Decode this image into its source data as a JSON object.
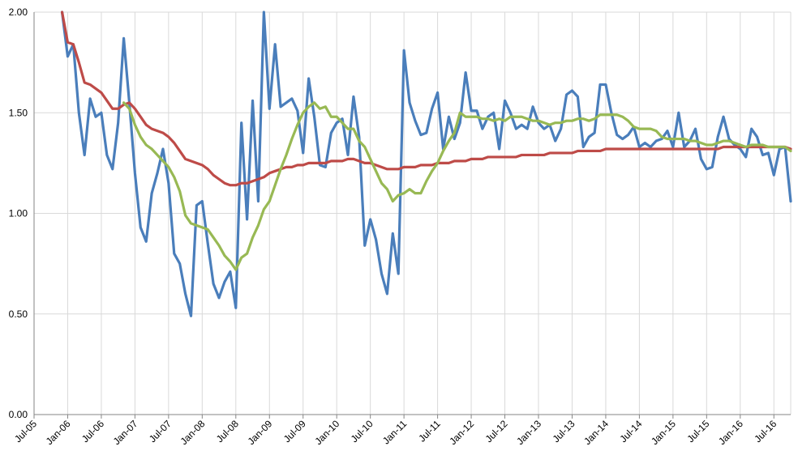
{
  "chart_data": {
    "type": "line",
    "x": [
      "2005-12",
      "2006-01",
      "2006-02",
      "2006-03",
      "2006-04",
      "2006-05",
      "2006-06",
      "2006-07",
      "2006-08",
      "2006-09",
      "2006-10",
      "2006-11",
      "2006-12",
      "2007-01",
      "2007-02",
      "2007-03",
      "2007-04",
      "2007-05",
      "2007-06",
      "2007-07",
      "2007-08",
      "2007-09",
      "2007-10",
      "2007-11",
      "2007-12",
      "2008-01",
      "2008-02",
      "2008-03",
      "2008-04",
      "2008-05",
      "2008-06",
      "2008-07",
      "2008-08",
      "2008-09",
      "2008-10",
      "2008-11",
      "2008-12",
      "2009-01",
      "2009-02",
      "2009-03",
      "2009-04",
      "2009-05",
      "2009-06",
      "2009-07",
      "2009-08",
      "2009-09",
      "2009-10",
      "2009-11",
      "2009-12",
      "2010-01",
      "2010-02",
      "2010-03",
      "2010-04",
      "2010-05",
      "2010-06",
      "2010-07",
      "2010-08",
      "2010-09",
      "2010-10",
      "2010-11",
      "2010-12",
      "2011-01",
      "2011-02",
      "2011-03",
      "2011-04",
      "2011-05",
      "2011-06",
      "2011-07",
      "2011-08",
      "2011-09",
      "2011-10",
      "2011-11",
      "2011-12",
      "2012-01",
      "2012-02",
      "2012-03",
      "2012-04",
      "2012-05",
      "2012-06",
      "2012-07",
      "2012-08",
      "2012-09",
      "2012-10",
      "2012-11",
      "2012-12",
      "2013-01",
      "2013-02",
      "2013-03",
      "2013-04",
      "2013-05",
      "2013-06",
      "2013-07",
      "2013-08",
      "2013-09",
      "2013-10",
      "2013-11",
      "2013-12",
      "2014-01",
      "2014-02",
      "2014-03",
      "2014-04",
      "2014-05",
      "2014-06",
      "2014-07",
      "2014-08",
      "2014-09",
      "2014-10",
      "2014-11",
      "2014-12",
      "2015-01",
      "2015-02",
      "2015-03",
      "2015-04",
      "2015-05",
      "2015-06",
      "2015-07",
      "2015-08",
      "2015-09",
      "2015-10",
      "2015-11",
      "2015-12",
      "2016-01",
      "2016-02",
      "2016-03",
      "2016-04",
      "2016-05",
      "2016-06",
      "2016-07",
      "2016-08",
      "2016-09",
      "2016-10"
    ],
    "series": [
      {
        "color": "#4a7ebb",
        "values": [
          2.0,
          1.78,
          1.84,
          1.5,
          1.29,
          1.57,
          1.48,
          1.5,
          1.29,
          1.22,
          1.45,
          1.87,
          1.55,
          1.2,
          0.93,
          0.86,
          1.1,
          1.2,
          1.32,
          1.15,
          0.8,
          0.75,
          0.6,
          0.49,
          1.04,
          1.06,
          0.85,
          0.65,
          0.58,
          0.66,
          0.71,
          0.53,
          1.45,
          0.97,
          1.56,
          1.06,
          2.0,
          1.52,
          1.84,
          1.53,
          1.55,
          1.57,
          1.51,
          1.3,
          1.67,
          1.48,
          1.24,
          1.23,
          1.4,
          1.45,
          1.47,
          1.29,
          1.58,
          1.38,
          0.84,
          0.97,
          0.87,
          0.7,
          0.6,
          0.9,
          0.7,
          1.81,
          1.55,
          1.46,
          1.39,
          1.4,
          1.52,
          1.6,
          1.32,
          1.48,
          1.37,
          1.45,
          1.7,
          1.51,
          1.51,
          1.42,
          1.48,
          1.5,
          1.32,
          1.56,
          1.5,
          1.42,
          1.44,
          1.42,
          1.53,
          1.45,
          1.42,
          1.44,
          1.36,
          1.42,
          1.59,
          1.61,
          1.58,
          1.33,
          1.38,
          1.4,
          1.64,
          1.64,
          1.5,
          1.39,
          1.37,
          1.39,
          1.43,
          1.33,
          1.35,
          1.33,
          1.36,
          1.37,
          1.41,
          1.33,
          1.5,
          1.33,
          1.36,
          1.42,
          1.27,
          1.22,
          1.23,
          1.38,
          1.48,
          1.37,
          1.34,
          1.32,
          1.28,
          1.42,
          1.38,
          1.29,
          1.3,
          1.19,
          1.32,
          1.33,
          1.06
        ]
      },
      {
        "color": "#be4b48",
        "values": [
          2.0,
          1.85,
          1.84,
          1.75,
          1.65,
          1.64,
          1.62,
          1.6,
          1.56,
          1.52,
          1.52,
          1.54,
          1.55,
          1.52,
          1.48,
          1.44,
          1.42,
          1.41,
          1.4,
          1.38,
          1.35,
          1.31,
          1.27,
          1.26,
          1.25,
          1.24,
          1.22,
          1.19,
          1.17,
          1.15,
          1.14,
          1.14,
          1.15,
          1.15,
          1.16,
          1.17,
          1.18,
          1.2,
          1.21,
          1.22,
          1.23,
          1.23,
          1.24,
          1.24,
          1.25,
          1.25,
          1.25,
          1.25,
          1.26,
          1.26,
          1.26,
          1.27,
          1.27,
          1.26,
          1.25,
          1.25,
          1.24,
          1.23,
          1.22,
          1.22,
          1.22,
          1.23,
          1.23,
          1.23,
          1.24,
          1.24,
          1.24,
          1.25,
          1.25,
          1.25,
          1.26,
          1.26,
          1.26,
          1.27,
          1.27,
          1.27,
          1.28,
          1.28,
          1.28,
          1.28,
          1.28,
          1.28,
          1.29,
          1.29,
          1.29,
          1.29,
          1.29,
          1.3,
          1.3,
          1.3,
          1.3,
          1.3,
          1.31,
          1.31,
          1.31,
          1.31,
          1.31,
          1.32,
          1.32,
          1.32,
          1.32,
          1.32,
          1.32,
          1.32,
          1.32,
          1.32,
          1.32,
          1.32,
          1.32,
          1.32,
          1.32,
          1.32,
          1.32,
          1.32,
          1.32,
          1.32,
          1.32,
          1.32,
          1.33,
          1.33,
          1.33,
          1.33,
          1.33,
          1.33,
          1.33,
          1.33,
          1.33,
          1.33,
          1.33,
          1.33,
          1.32
        ]
      },
      {
        "color": "#98b954",
        "values": [
          null,
          null,
          null,
          null,
          null,
          null,
          null,
          null,
          null,
          null,
          null,
          1.55,
          1.52,
          1.44,
          1.38,
          1.34,
          1.32,
          1.29,
          1.26,
          1.23,
          1.18,
          1.11,
          0.99,
          0.95,
          0.94,
          0.93,
          0.92,
          0.88,
          0.84,
          0.79,
          0.76,
          0.72,
          0.78,
          0.8,
          0.88,
          0.94,
          1.02,
          1.06,
          1.14,
          1.22,
          1.29,
          1.37,
          1.44,
          1.5,
          1.53,
          1.55,
          1.52,
          1.53,
          1.48,
          1.48,
          1.45,
          1.42,
          1.42,
          1.36,
          1.33,
          1.27,
          1.21,
          1.15,
          1.12,
          1.06,
          1.09,
          1.1,
          1.12,
          1.1,
          1.1,
          1.16,
          1.21,
          1.25,
          1.31,
          1.36,
          1.4,
          1.5,
          1.48,
          1.48,
          1.48,
          1.47,
          1.47,
          1.46,
          1.47,
          1.46,
          1.48,
          1.48,
          1.48,
          1.47,
          1.46,
          1.46,
          1.45,
          1.44,
          1.45,
          1.45,
          1.46,
          1.46,
          1.47,
          1.47,
          1.46,
          1.47,
          1.49,
          1.49,
          1.49,
          1.49,
          1.48,
          1.46,
          1.43,
          1.42,
          1.42,
          1.42,
          1.41,
          1.38,
          1.37,
          1.37,
          1.37,
          1.37,
          1.36,
          1.36,
          1.35,
          1.34,
          1.34,
          1.35,
          1.36,
          1.36,
          1.35,
          1.34,
          1.33,
          1.34,
          1.34,
          1.34,
          1.33,
          1.33,
          1.33,
          1.33,
          1.31
        ]
      }
    ],
    "xlim": [
      "2005-07",
      "2016-10"
    ],
    "xticks": [
      {
        "value": "2005-07",
        "label": "Jul-05"
      },
      {
        "value": "2006-01",
        "label": "Jan-06"
      },
      {
        "value": "2006-07",
        "label": "Jul-06"
      },
      {
        "value": "2007-01",
        "label": "Jan-07"
      },
      {
        "value": "2007-07",
        "label": "Jul-07"
      },
      {
        "value": "2008-01",
        "label": "Jan-08"
      },
      {
        "value": "2008-07",
        "label": "Jul-08"
      },
      {
        "value": "2009-01",
        "label": "Jan-09"
      },
      {
        "value": "2009-07",
        "label": "Jul-09"
      },
      {
        "value": "2010-01",
        "label": "Jan-10"
      },
      {
        "value": "2010-07",
        "label": "Jul-10"
      },
      {
        "value": "2011-01",
        "label": "Jan-11"
      },
      {
        "value": "2011-07",
        "label": "Jul-11"
      },
      {
        "value": "2012-01",
        "label": "Jan-12"
      },
      {
        "value": "2012-07",
        "label": "Jul-12"
      },
      {
        "value": "2013-01",
        "label": "Jan-13"
      },
      {
        "value": "2013-07",
        "label": "Jul-13"
      },
      {
        "value": "2014-01",
        "label": "Jan-14"
      },
      {
        "value": "2014-07",
        "label": "Jul-14"
      },
      {
        "value": "2015-01",
        "label": "Jan-15"
      },
      {
        "value": "2015-07",
        "label": "Jul-15"
      },
      {
        "value": "2016-01",
        "label": "Jan-16"
      },
      {
        "value": "2016-07",
        "label": "Jul-16"
      }
    ],
    "ylim": [
      0,
      2
    ],
    "yticks": [
      {
        "value": 0,
        "label": "0.00"
      },
      {
        "value": 0.5,
        "label": "0.50"
      },
      {
        "value": 1,
        "label": "1.00"
      },
      {
        "value": 1.5,
        "label": "1.50"
      },
      {
        "value": 2,
        "label": "2.00"
      }
    ],
    "grid": true
  }
}
